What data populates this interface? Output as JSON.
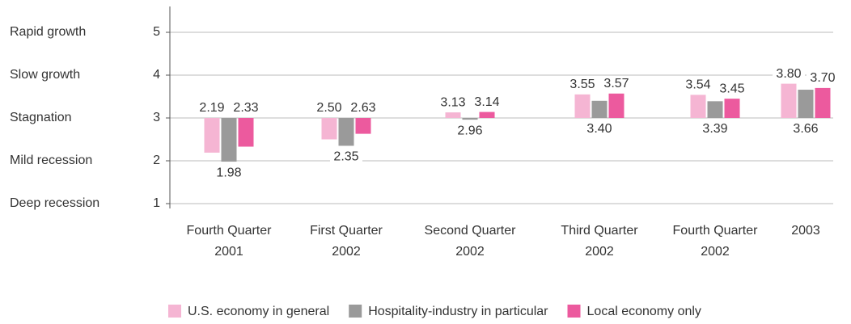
{
  "chart_data": {
    "type": "bar",
    "categories": [
      [
        "Fourth Quarter",
        "2001"
      ],
      [
        "First Quarter",
        "2002"
      ],
      [
        "Second Quarter",
        "2002"
      ],
      [
        "Third Quarter",
        "2002"
      ],
      [
        "Fourth Quarter",
        "2002"
      ],
      [
        "2003"
      ]
    ],
    "series": [
      {
        "name": "U.S. economy in general",
        "color": "#f5b5d3",
        "values": [
          2.19,
          2.5,
          3.13,
          3.55,
          3.54,
          3.8
        ],
        "value_labels": [
          "2.19",
          "2.50",
          "3.13",
          "3.55",
          "3.54",
          "3.80"
        ]
      },
      {
        "name": "Hospitality-industry in particular",
        "color": "#9a9a9a",
        "values": [
          1.98,
          2.35,
          2.96,
          3.4,
          3.39,
          3.66
        ],
        "value_labels": [
          "1.98",
          "2.35",
          "2.96",
          "3.40",
          "3.39",
          "3.66"
        ]
      },
      {
        "name": "Local economy only",
        "color": "#ec5a9e",
        "values": [
          2.33,
          2.63,
          3.14,
          3.57,
          3.45,
          3.7
        ],
        "value_labels": [
          "2.33",
          "2.63",
          "3.14",
          "3.57",
          "3.45",
          "3.70"
        ]
      }
    ],
    "ylim": [
      1,
      5
    ],
    "yticks": [
      1,
      2,
      3,
      4,
      5
    ],
    "ytick_names": [
      "Deep recession",
      "Mild recession",
      "Stagnation",
      "Slow growth",
      "Rapid growth"
    ],
    "baseline": 3,
    "grid": true
  }
}
